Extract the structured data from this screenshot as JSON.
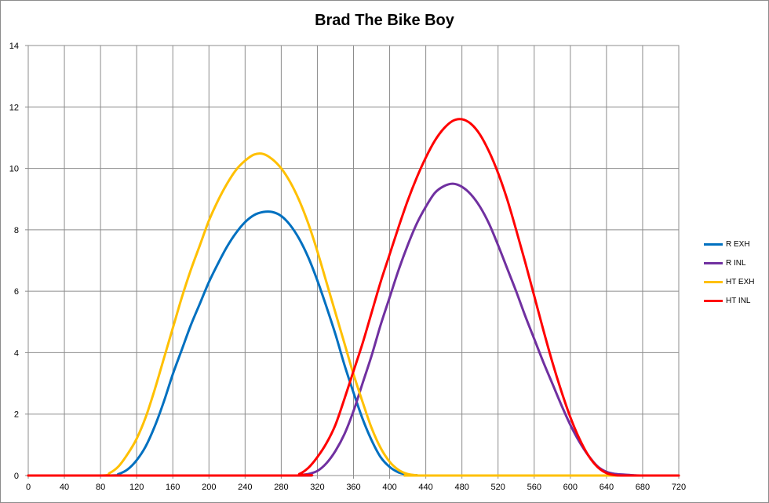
{
  "chart_data": {
    "type": "line",
    "title": "Brad The Bike Boy",
    "xlabel": "",
    "ylabel": "",
    "xlim": [
      0,
      720
    ],
    "ylim": [
      0,
      14
    ],
    "x_ticks": [
      0,
      40,
      80,
      120,
      160,
      200,
      240,
      280,
      320,
      360,
      400,
      440,
      480,
      520,
      560,
      600,
      640,
      680,
      720
    ],
    "y_ticks": [
      0,
      2,
      4,
      6,
      8,
      10,
      12,
      14
    ],
    "grid": true,
    "legend_position": "right",
    "series": [
      {
        "name": "R EXH",
        "color": "#0070c0",
        "points": [
          [
            0,
            0
          ],
          [
            90,
            0
          ],
          [
            100,
            0.05
          ],
          [
            110,
            0.2
          ],
          [
            120,
            0.5
          ],
          [
            130,
            0.95
          ],
          [
            140,
            1.6
          ],
          [
            150,
            2.4
          ],
          [
            160,
            3.3
          ],
          [
            170,
            4.1
          ],
          [
            180,
            4.9
          ],
          [
            190,
            5.6
          ],
          [
            200,
            6.3
          ],
          [
            210,
            6.9
          ],
          [
            220,
            7.45
          ],
          [
            230,
            7.9
          ],
          [
            240,
            8.25
          ],
          [
            250,
            8.48
          ],
          [
            260,
            8.58
          ],
          [
            270,
            8.58
          ],
          [
            280,
            8.45
          ],
          [
            290,
            8.15
          ],
          [
            300,
            7.7
          ],
          [
            310,
            7.1
          ],
          [
            320,
            6.35
          ],
          [
            330,
            5.5
          ],
          [
            340,
            4.6
          ],
          [
            350,
            3.6
          ],
          [
            360,
            2.7
          ],
          [
            370,
            1.85
          ],
          [
            380,
            1.15
          ],
          [
            390,
            0.6
          ],
          [
            400,
            0.28
          ],
          [
            410,
            0.1
          ],
          [
            420,
            0.03
          ],
          [
            430,
            0.01
          ],
          [
            440,
            0
          ],
          [
            720,
            0
          ]
        ]
      },
      {
        "name": "R INL",
        "color": "#7030a0",
        "points": [
          [
            0,
            0
          ],
          [
            290,
            0
          ],
          [
            300,
            0.02
          ],
          [
            310,
            0.05
          ],
          [
            320,
            0.15
          ],
          [
            330,
            0.4
          ],
          [
            340,
            0.8
          ],
          [
            350,
            1.35
          ],
          [
            360,
            2.1
          ],
          [
            370,
            3.0
          ],
          [
            380,
            3.9
          ],
          [
            390,
            4.9
          ],
          [
            400,
            5.8
          ],
          [
            410,
            6.7
          ],
          [
            420,
            7.5
          ],
          [
            430,
            8.2
          ],
          [
            440,
            8.75
          ],
          [
            450,
            9.2
          ],
          [
            460,
            9.42
          ],
          [
            470,
            9.5
          ],
          [
            480,
            9.4
          ],
          [
            490,
            9.15
          ],
          [
            500,
            8.75
          ],
          [
            510,
            8.2
          ],
          [
            520,
            7.5
          ],
          [
            530,
            6.75
          ],
          [
            540,
            6.0
          ],
          [
            550,
            5.2
          ],
          [
            560,
            4.45
          ],
          [
            570,
            3.7
          ],
          [
            580,
            3.0
          ],
          [
            590,
            2.3
          ],
          [
            600,
            1.65
          ],
          [
            610,
            1.1
          ],
          [
            620,
            0.65
          ],
          [
            630,
            0.3
          ],
          [
            640,
            0.12
          ],
          [
            650,
            0.05
          ],
          [
            660,
            0.03
          ],
          [
            670,
            0.01
          ],
          [
            680,
            0
          ],
          [
            720,
            0
          ]
        ]
      },
      {
        "name": "HT EXH",
        "color": "#ffc000",
        "points": [
          [
            0,
            0
          ],
          [
            80,
            0
          ],
          [
            90,
            0.08
          ],
          [
            100,
            0.3
          ],
          [
            110,
            0.7
          ],
          [
            120,
            1.2
          ],
          [
            130,
            1.9
          ],
          [
            140,
            2.8
          ],
          [
            150,
            3.8
          ],
          [
            160,
            4.8
          ],
          [
            170,
            5.8
          ],
          [
            180,
            6.7
          ],
          [
            190,
            7.5
          ],
          [
            200,
            8.3
          ],
          [
            210,
            8.95
          ],
          [
            220,
            9.5
          ],
          [
            230,
            9.95
          ],
          [
            240,
            10.25
          ],
          [
            250,
            10.45
          ],
          [
            260,
            10.47
          ],
          [
            270,
            10.3
          ],
          [
            280,
            10.0
          ],
          [
            290,
            9.55
          ],
          [
            300,
            8.95
          ],
          [
            310,
            8.2
          ],
          [
            320,
            7.3
          ],
          [
            330,
            6.3
          ],
          [
            340,
            5.3
          ],
          [
            350,
            4.3
          ],
          [
            360,
            3.3
          ],
          [
            370,
            2.4
          ],
          [
            380,
            1.55
          ],
          [
            390,
            0.9
          ],
          [
            400,
            0.45
          ],
          [
            410,
            0.18
          ],
          [
            420,
            0.05
          ],
          [
            430,
            0.01
          ],
          [
            440,
            0
          ],
          [
            720,
            0
          ]
        ]
      },
      {
        "name": "HT INL",
        "color": "#ff0000",
        "points": [
          [
            0,
            0
          ],
          [
            290,
            0
          ],
          [
            300,
            0.05
          ],
          [
            310,
            0.25
          ],
          [
            320,
            0.6
          ],
          [
            330,
            1.05
          ],
          [
            340,
            1.65
          ],
          [
            350,
            2.5
          ],
          [
            360,
            3.4
          ],
          [
            370,
            4.3
          ],
          [
            380,
            5.3
          ],
          [
            390,
            6.3
          ],
          [
            400,
            7.2
          ],
          [
            410,
            8.1
          ],
          [
            420,
            8.95
          ],
          [
            430,
            9.7
          ],
          [
            440,
            10.35
          ],
          [
            450,
            10.9
          ],
          [
            460,
            11.3
          ],
          [
            470,
            11.55
          ],
          [
            480,
            11.6
          ],
          [
            490,
            11.45
          ],
          [
            500,
            11.1
          ],
          [
            510,
            10.55
          ],
          [
            520,
            9.85
          ],
          [
            530,
            9.0
          ],
          [
            540,
            8.0
          ],
          [
            550,
            6.95
          ],
          [
            560,
            5.85
          ],
          [
            570,
            4.75
          ],
          [
            580,
            3.7
          ],
          [
            590,
            2.75
          ],
          [
            600,
            1.9
          ],
          [
            610,
            1.2
          ],
          [
            620,
            0.65
          ],
          [
            630,
            0.28
          ],
          [
            640,
            0.08
          ],
          [
            650,
            0.01
          ],
          [
            660,
            0
          ],
          [
            720,
            0
          ]
        ]
      }
    ]
  }
}
